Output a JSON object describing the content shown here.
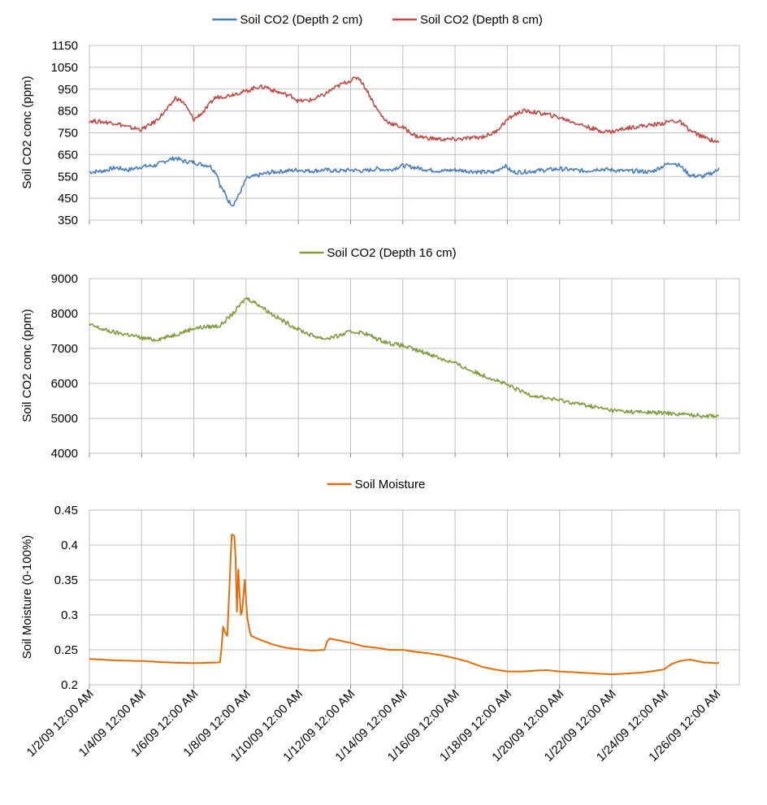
{
  "x_tick_labels": [
    "1/2/09 12:00 AM",
    "1/4/09 12:00 AM",
    "1/6/09 12:00 AM",
    "1/8/09 12:00 AM",
    "1/10/09 12:00 AM",
    "1/12/09 12:00 AM",
    "1/14/09 12:00 AM",
    "1/16/09 12:00 AM",
    "1/18/09 12:00 AM",
    "1/20/09 12:00 AM",
    "1/22/09 12:00 AM",
    "1/24/09 12:00 AM",
    "1/26/09 12:00 AM"
  ],
  "chart_data": [
    {
      "type": "line",
      "ylabel": "Soil CO2 conc (ppm)",
      "ylim": [
        350,
        1150
      ],
      "yticks": [
        350,
        450,
        550,
        650,
        750,
        850,
        950,
        1050,
        1150
      ],
      "xlim": [
        0,
        24.6
      ],
      "grid": true,
      "legend": "top",
      "series": [
        {
          "name": "Soil CO2 (Depth 2 cm)",
          "color": "#4a7ebb",
          "x": [
            0,
            0.5,
            1,
            1.5,
            2,
            2.5,
            3,
            3.3,
            3.6,
            4,
            4.3,
            4.6,
            4.9,
            5,
            5.2,
            5.3,
            5.5,
            5.7,
            5.9,
            6,
            6.3,
            6.6,
            7,
            7.5,
            8,
            8.5,
            9,
            9.5,
            10,
            10.5,
            11,
            11.5,
            12,
            12.5,
            13,
            13.5,
            14,
            14.5,
            15,
            15.5,
            15.9,
            16.2,
            16.5,
            17,
            17.5,
            18,
            18.5,
            19,
            19.5,
            20,
            20.5,
            21,
            21.5,
            22,
            22.3,
            22.6,
            23,
            23.5,
            24,
            24.1
          ],
          "y": [
            570,
            575,
            590,
            580,
            595,
            600,
            625,
            635,
            620,
            615,
            605,
            600,
            560,
            510,
            470,
            440,
            420,
            460,
            510,
            540,
            550,
            560,
            570,
            575,
            580,
            575,
            580,
            575,
            580,
            575,
            585,
            580,
            600,
            590,
            580,
            575,
            580,
            575,
            570,
            570,
            600,
            570,
            570,
            575,
            580,
            585,
            580,
            575,
            585,
            580,
            575,
            575,
            570,
            600,
            615,
            600,
            555,
            550,
            575,
            590
          ]
        },
        {
          "name": "Soil CO2 (Depth 8 cm)",
          "color": "#be4b48",
          "x": [
            0,
            0.5,
            1,
            1.5,
            2,
            2.5,
            3,
            3.3,
            3.6,
            4,
            4.4,
            4.8,
            5,
            5.3,
            5.6,
            6,
            6.4,
            6.8,
            7,
            7.4,
            7.8,
            8,
            8.5,
            9,
            9.3,
            9.7,
            10,
            10.3,
            10.6,
            11,
            11.3,
            11.6,
            12,
            12.5,
            13,
            13.5,
            14,
            14.5,
            15,
            15.5,
            16,
            16.3,
            16.6,
            17,
            17.5,
            18,
            18.5,
            19,
            19.5,
            20,
            20.5,
            21,
            21.5,
            22,
            22.3,
            22.6,
            23,
            23.5,
            24,
            24.1
          ],
          "y": [
            805,
            800,
            795,
            775,
            765,
            800,
            860,
            910,
            890,
            810,
            850,
            910,
            915,
            920,
            930,
            940,
            960,
            960,
            945,
            930,
            915,
            895,
            900,
            925,
            950,
            975,
            990,
            1005,
            950,
            860,
            810,
            790,
            775,
            735,
            725,
            720,
            720,
            725,
            730,
            750,
            810,
            835,
            850,
            845,
            835,
            820,
            800,
            780,
            760,
            755,
            770,
            780,
            785,
            795,
            805,
            800,
            760,
            730,
            710,
            705
          ]
        }
      ]
    },
    {
      "type": "line",
      "ylabel": "Soil CO2 conc (ppm)",
      "ylim": [
        4000,
        9000
      ],
      "yticks": [
        4000,
        5000,
        6000,
        7000,
        8000,
        9000
      ],
      "xlim": [
        0,
        24.6
      ],
      "grid": true,
      "legend": "top",
      "series": [
        {
          "name": "Soil CO2 (Depth 16 cm)",
          "color": "#7f9b3c",
          "x": [
            0,
            0.5,
            1,
            1.5,
            2,
            2.5,
            3,
            3.5,
            4,
            4.5,
            5,
            5.5,
            6,
            6.5,
            7,
            7.5,
            8,
            8.5,
            9,
            9.5,
            10,
            10.5,
            11,
            11.5,
            12,
            12.5,
            13,
            13.5,
            14,
            14.5,
            15,
            15.5,
            16,
            16.5,
            17,
            17.5,
            18,
            18.5,
            19,
            19.5,
            20,
            20.5,
            21,
            21.5,
            22,
            22.5,
            23,
            23.5,
            24,
            24.1
          ],
          "y": [
            7680,
            7550,
            7450,
            7400,
            7300,
            7250,
            7330,
            7450,
            7580,
            7620,
            7650,
            8000,
            8450,
            8250,
            7980,
            7750,
            7550,
            7380,
            7280,
            7350,
            7480,
            7450,
            7280,
            7150,
            7080,
            6950,
            6850,
            6700,
            6580,
            6400,
            6250,
            6120,
            5950,
            5780,
            5650,
            5580,
            5520,
            5450,
            5380,
            5300,
            5230,
            5200,
            5180,
            5170,
            5150,
            5130,
            5100,
            5080,
            5080,
            5080
          ]
        }
      ]
    },
    {
      "type": "line",
      "ylabel": "Soil Moisture (0-100%)",
      "ylim": [
        0.2,
        0.45
      ],
      "yticks": [
        0.2,
        0.25,
        0.3,
        0.35,
        0.4,
        0.45
      ],
      "ytick_labels": [
        "0.2",
        "0.25",
        "0.3",
        "0.35",
        "0.4",
        "0.45"
      ],
      "xlim": [
        0,
        24.6
      ],
      "grid": true,
      "legend": "top",
      "series": [
        {
          "name": "Soil Moisture",
          "color": "#e46c0a",
          "x": [
            0,
            1,
            2,
            3,
            4,
            5,
            5.05,
            5.12,
            5.2,
            5.28,
            5.35,
            5.45,
            5.55,
            5.6,
            5.65,
            5.7,
            5.75,
            5.8,
            5.85,
            5.9,
            5.95,
            6.0,
            6.05,
            6.1,
            6.15,
            6.2,
            6.5,
            7,
            7.5,
            8,
            8.5,
            9,
            9.1,
            9.2,
            9.5,
            10,
            10.5,
            11,
            11.5,
            12,
            12.5,
            13,
            13.5,
            14,
            14.5,
            15,
            15.5,
            16,
            16.5,
            17,
            17.5,
            18,
            18.5,
            19,
            19.5,
            20,
            20.5,
            21,
            21.5,
            22,
            22.3,
            22.6,
            23,
            23.5,
            24,
            24.1
          ],
          "y": [
            0.237,
            0.235,
            0.234,
            0.232,
            0.231,
            0.232,
            0.25,
            0.283,
            0.275,
            0.27,
            0.33,
            0.415,
            0.413,
            0.38,
            0.305,
            0.365,
            0.33,
            0.3,
            0.305,
            0.33,
            0.35,
            0.32,
            0.295,
            0.285,
            0.275,
            0.27,
            0.265,
            0.258,
            0.253,
            0.251,
            0.249,
            0.25,
            0.262,
            0.266,
            0.264,
            0.26,
            0.255,
            0.253,
            0.25,
            0.25,
            0.247,
            0.245,
            0.242,
            0.238,
            0.233,
            0.226,
            0.222,
            0.219,
            0.219,
            0.22,
            0.221,
            0.219,
            0.218,
            0.217,
            0.216,
            0.215,
            0.216,
            0.217,
            0.219,
            0.222,
            0.23,
            0.234,
            0.236,
            0.232,
            0.231,
            0.232
          ]
        }
      ]
    }
  ]
}
